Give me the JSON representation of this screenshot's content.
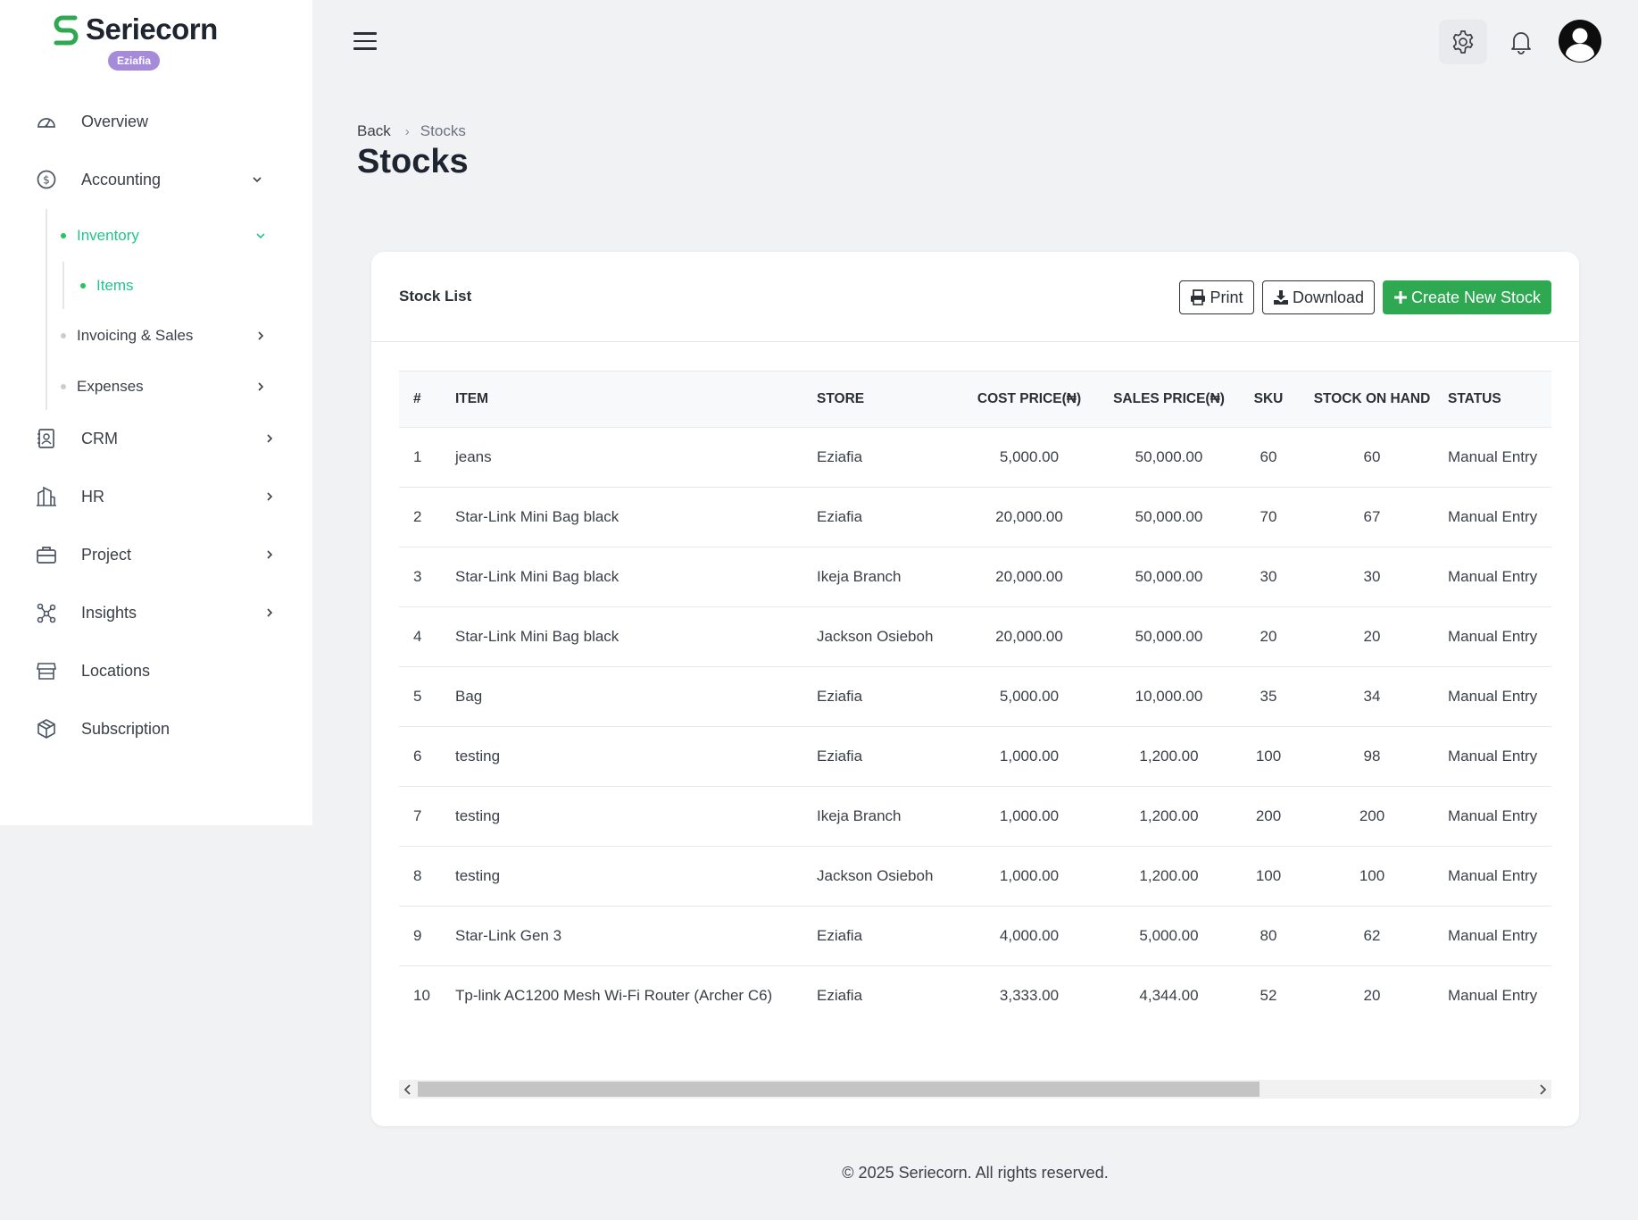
{
  "brand": {
    "name": "Seriecorn",
    "badge": "Eziafia",
    "accent": "#2fa852"
  },
  "sidebar": {
    "items": [
      {
        "label": "Overview",
        "icon": "gauge-icon"
      },
      {
        "label": "Accounting",
        "icon": "dollar-circle-icon"
      },
      {
        "label": "CRM",
        "icon": "contacts-icon"
      },
      {
        "label": "HR",
        "icon": "building-icon"
      },
      {
        "label": "Project",
        "icon": "briefcase-icon"
      },
      {
        "label": "Insights",
        "icon": "network-icon"
      },
      {
        "label": "Locations",
        "icon": "store-icon"
      },
      {
        "label": "Subscription",
        "icon": "cube-icon"
      }
    ],
    "sub": {
      "inventory": "Inventory",
      "items": "Items",
      "invoicing": "Invoicing & Sales",
      "expenses": "Expenses"
    }
  },
  "breadcrumb": {
    "back": "Back",
    "current": "Stocks"
  },
  "page": {
    "title": "Stocks"
  },
  "card": {
    "title": "Stock List",
    "print": "Print",
    "download": "Download",
    "create": "Create New Stock"
  },
  "table": {
    "headers": [
      "#",
      "ITEM",
      "STORE",
      "COST PRICE(₦)",
      "SALES PRICE(₦)",
      "SKU",
      "STOCK ON HAND",
      "STATUS"
    ],
    "rows": [
      [
        "1",
        "jeans",
        "Eziafia",
        "5,000.00",
        "50,000.00",
        "60",
        "60",
        "Manual Entry"
      ],
      [
        "2",
        "Star-Link Mini Bag black",
        "Eziafia",
        "20,000.00",
        "50,000.00",
        "70",
        "67",
        "Manual Entry"
      ],
      [
        "3",
        "Star-Link Mini Bag black",
        "Ikeja Branch",
        "20,000.00",
        "50,000.00",
        "30",
        "30",
        "Manual Entry"
      ],
      [
        "4",
        "Star-Link Mini Bag black",
        "Jackson Osieboh",
        "20,000.00",
        "50,000.00",
        "20",
        "20",
        "Manual Entry"
      ],
      [
        "5",
        "Bag",
        "Eziafia",
        "5,000.00",
        "10,000.00",
        "35",
        "34",
        "Manual Entry"
      ],
      [
        "6",
        "testing",
        "Eziafia",
        "1,000.00",
        "1,200.00",
        "100",
        "98",
        "Manual Entry"
      ],
      [
        "7",
        "testing",
        "Ikeja Branch",
        "1,000.00",
        "1,200.00",
        "200",
        "200",
        "Manual Entry"
      ],
      [
        "8",
        "testing",
        "Jackson Osieboh",
        "1,000.00",
        "1,200.00",
        "100",
        "100",
        "Manual Entry"
      ],
      [
        "9",
        "Star-Link Gen 3",
        "Eziafia",
        "4,000.00",
        "5,000.00",
        "80",
        "62",
        "Manual Entry"
      ],
      [
        "10",
        "Tp-link AC1200 Mesh Wi-Fi Router (Archer C6)",
        "Eziafia",
        "3,333.00",
        "4,344.00",
        "52",
        "20",
        "Manual Entry"
      ]
    ]
  },
  "footer": "© 2025 Seriecorn. All rights reserved."
}
